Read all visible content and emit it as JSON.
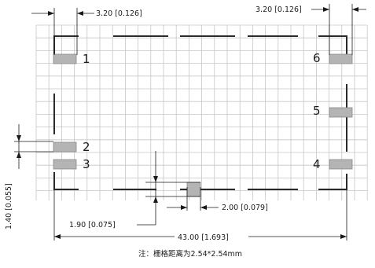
{
  "dimensions": {
    "top_left": "3.20 [0.126]",
    "top_right": "3.20 [0.126]",
    "left_vertical": "1.40 [0.055]",
    "bottom_pad_width": "2.00 [0.079]",
    "bottom_pad_offset": "1.90 [0.075]",
    "overall_width": "43.00 [1.693]"
  },
  "pin_labels": {
    "p1": "1",
    "p2": "2",
    "p3": "3",
    "p4": "4",
    "p5": "5",
    "p6": "6"
  },
  "note": "注：栅格距离为2.54*2.54mm",
  "colors": {
    "grid": "#c6c6c6",
    "outline": "#2a2a2a",
    "pad": "#b4b4b4",
    "pad_border": "#8a8a8a",
    "dimension": "#1a1a1a"
  }
}
